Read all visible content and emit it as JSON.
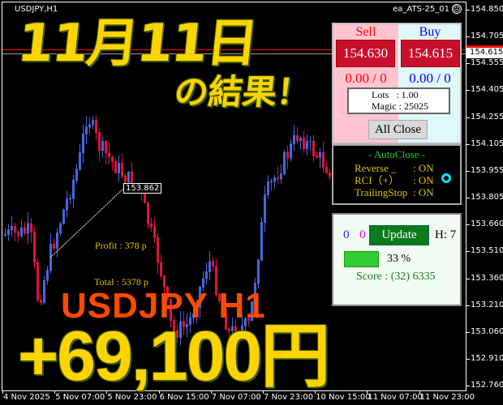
{
  "chart": {
    "symbol": "USDJPY,H1",
    "ea_name": "ea_ATS-25_01",
    "ea_status_icon": "sad-face-icon",
    "price_ticks": [
      "154.850",
      "154.705",
      "154.555",
      "154.405",
      "154.255",
      "154.105",
      "153.955",
      "153.805",
      "153.660",
      "153.510",
      "153.360",
      "153.210",
      "153.060",
      "152.910",
      "152.760"
    ],
    "bid_label": "154.630",
    "ask_label": "154.615",
    "time_ticks": [
      "4 Nov 2025",
      "5 Nov 07:00",
      "5 Nov 23:00",
      "6 Nov 15:00",
      "7 Nov 07:00",
      "7 Nov 23:00",
      "10 Nov 15:00",
      "11 Nov 07:00",
      "11 Nov 23:00"
    ],
    "trade_label": "153.862",
    "profit": "Profit : 378 p",
    "total": "Total : 5378 p",
    "colors": {
      "bull": "#4169e1",
      "bear": "#dc143c",
      "bid_line": "#ff0000",
      "ask_line": "#a0a0a0"
    }
  },
  "overlay": {
    "date_title": "11月11日",
    "subtitle": "の結果！",
    "pair": "USDJPY H1",
    "result": "+69,100円"
  },
  "trade_panel": {
    "sell_label": "Sell",
    "buy_label": "Buy",
    "sell_price": "154.630",
    "buy_price": "154.615",
    "sell_pos": "0.00 / 0",
    "buy_pos": "0.00 / 0",
    "lots": "Lots   : 1.00",
    "magic": "Magic : 25025",
    "all_close": "All Close"
  },
  "autoclose": {
    "title": "- AutoClose -",
    "rows": [
      {
        "label": "Reverse _",
        "value": ": ON"
      },
      {
        "label": "RCI（+）",
        "value": ": ON"
      },
      {
        "label": "TrailingStop",
        "value": ": ON"
      }
    ]
  },
  "status_panel": {
    "count_blue": "0",
    "count_magenta": "0",
    "update": "Update",
    "h": "H: 7",
    "progress_text": "33 %",
    "progress": 33,
    "score": "Score : (32) 6335"
  }
}
